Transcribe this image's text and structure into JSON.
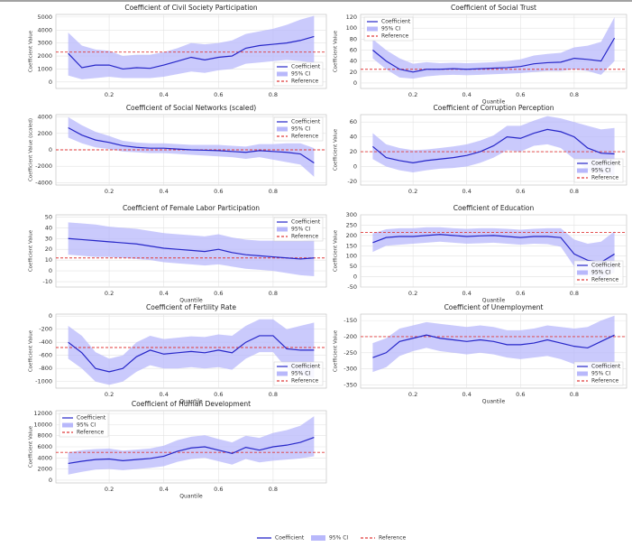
{
  "chart_data": [
    {
      "type": "line",
      "title": "Coefficient of Civil Society Participation",
      "ylabel": "Coefficient Value",
      "x": [
        0.05,
        0.1,
        0.15,
        0.2,
        0.25,
        0.3,
        0.35,
        0.4,
        0.45,
        0.5,
        0.55,
        0.6,
        0.65,
        0.7,
        0.75,
        0.8,
        0.85,
        0.9,
        0.95
      ],
      "series": [
        {
          "name": "Coefficient",
          "color": "#2626c8",
          "values": [
            2200,
            1100,
            1300,
            1300,
            1000,
            1100,
            1050,
            1300,
            1600,
            1900,
            1700,
            1900,
            2000,
            2600,
            2800,
            2900,
            3000,
            3200,
            3500
          ]
        }
      ],
      "ci": {
        "name": "95% CI",
        "color": "#b8b8fb",
        "lower": [
          500,
          200,
          300,
          400,
          300,
          300,
          300,
          400,
          600,
          800,
          700,
          900,
          1000,
          1400,
          1500,
          1600,
          1700,
          1600,
          1500
        ],
        "upper": [
          3800,
          2800,
          2500,
          2400,
          2000,
          2100,
          2100,
          2300,
          2600,
          3000,
          2900,
          3000,
          3200,
          3700,
          3900,
          4100,
          4400,
          4800,
          5100
        ]
      },
      "reference": {
        "name": "Reference",
        "color": "#e03a3a",
        "value": 2300
      },
      "xlim": [
        0.005,
        0.995
      ],
      "xticks": [
        0.2,
        0.4,
        0.6,
        0.8
      ],
      "ylim": [
        -500,
        5200
      ],
      "yticks": [
        0,
        1000,
        2000,
        3000,
        4000,
        5000
      ],
      "grid": true,
      "legend": "lower right"
    },
    {
      "type": "line",
      "title": "Coefficient of Social Trust",
      "xlabel": "Quantile",
      "ylabel": "Coefficient Value",
      "x": [
        0.05,
        0.1,
        0.15,
        0.2,
        0.25,
        0.3,
        0.35,
        0.4,
        0.45,
        0.5,
        0.55,
        0.6,
        0.65,
        0.7,
        0.75,
        0.8,
        0.85,
        0.9,
        0.95
      ],
      "series": [
        {
          "name": "Coefficient",
          "color": "#2626c8",
          "values": [
            60,
            40,
            25,
            20,
            25,
            25,
            26,
            25,
            26,
            27,
            28,
            30,
            35,
            37,
            38,
            45,
            43,
            40,
            82
          ]
        }
      ],
      "ci": {
        "name": "95% CI",
        "color": "#b8b8fb",
        "lower": [
          45,
          25,
          10,
          8,
          12,
          14,
          15,
          14,
          15,
          16,
          17,
          18,
          20,
          22,
          22,
          25,
          22,
          15,
          40
        ],
        "upper": [
          80,
          60,
          45,
          35,
          38,
          36,
          37,
          36,
          37,
          38,
          40,
          43,
          50,
          53,
          55,
          65,
          68,
          75,
          120
        ]
      },
      "reference": {
        "name": "Reference",
        "color": "#e03a3a",
        "value": 25
      },
      "xlim": [
        0.005,
        0.995
      ],
      "xticks": [
        0.2,
        0.4,
        0.6,
        0.8
      ],
      "ylim": [
        -10,
        125
      ],
      "yticks": [
        0,
        20,
        40,
        60,
        80,
        100,
        120
      ],
      "grid": true,
      "legend": "upper left"
    },
    {
      "type": "line",
      "title": "Coefficient of Social Networks (scaled)",
      "ylabel": "Coefficient Value (scaled)",
      "x": [
        0.05,
        0.1,
        0.15,
        0.2,
        0.25,
        0.3,
        0.35,
        0.4,
        0.45,
        0.5,
        0.55,
        0.6,
        0.65,
        0.7,
        0.75,
        0.8,
        0.85,
        0.9,
        0.95
      ],
      "series": [
        {
          "name": "Coefficient",
          "color": "#2626c8",
          "values": [
            2700,
            1800,
            1200,
            900,
            500,
            300,
            200,
            200,
            100,
            0,
            -50,
            -100,
            -200,
            -300,
            -100,
            -200,
            -300,
            -500,
            -1600
          ]
        }
      ],
      "ci": {
        "name": "95% CI",
        "color": "#b8b8fb",
        "lower": [
          1500,
          800,
          300,
          100,
          -200,
          -300,
          -400,
          -400,
          -500,
          -600,
          -700,
          -800,
          -900,
          -1100,
          -900,
          -1200,
          -1500,
          -1800,
          -3300
        ],
        "upper": [
          4000,
          3000,
          2200,
          1700,
          1100,
          900,
          800,
          800,
          700,
          600,
          600,
          600,
          500,
          400,
          700,
          700,
          800,
          800,
          200
        ]
      },
      "reference": {
        "name": "Reference",
        "color": "#e03a3a",
        "value": 0
      },
      "xlim": [
        0.005,
        0.995
      ],
      "xticks": [
        0.2,
        0.4,
        0.6,
        0.8
      ],
      "ylim": [
        -4300,
        4300
      ],
      "yticks": [
        -4000,
        -2000,
        0,
        2000,
        4000
      ],
      "grid": true,
      "legend": "upper right"
    },
    {
      "type": "line",
      "title": "Coefficient of Corruption Perception",
      "ylabel": "Coefficient Value",
      "x": [
        0.05,
        0.1,
        0.15,
        0.2,
        0.25,
        0.3,
        0.35,
        0.4,
        0.45,
        0.5,
        0.55,
        0.6,
        0.65,
        0.7,
        0.75,
        0.8,
        0.85,
        0.9,
        0.95
      ],
      "series": [
        {
          "name": "Coefficient",
          "color": "#2626c8",
          "values": [
            27,
            12,
            8,
            5,
            8,
            10,
            12,
            15,
            20,
            28,
            40,
            38,
            45,
            50,
            47,
            40,
            25,
            18,
            17
          ]
        }
      ],
      "ci": {
        "name": "95% CI",
        "color": "#b8b8fb",
        "lower": [
          10,
          0,
          -5,
          -8,
          -5,
          -3,
          -2,
          0,
          5,
          12,
          22,
          20,
          28,
          30,
          25,
          10,
          -5,
          -10,
          -12
        ],
        "upper": [
          45,
          30,
          25,
          22,
          23,
          25,
          27,
          30,
          35,
          42,
          55,
          55,
          62,
          68,
          65,
          60,
          55,
          50,
          52
        ]
      },
      "reference": {
        "name": "Reference",
        "color": "#e03a3a",
        "value": 20
      },
      "xlim": [
        0.005,
        0.995
      ],
      "xticks": [
        0.2,
        0.4,
        0.6,
        0.8
      ],
      "ylim": [
        -25,
        70
      ],
      "yticks": [
        -20,
        0,
        20,
        40,
        60
      ],
      "grid": true,
      "legend": "lower right"
    },
    {
      "type": "line",
      "title": "Coefficient of Female Labor Participation",
      "xlabel": "Quantile",
      "ylabel": "Coefficient Value",
      "x": [
        0.05,
        0.1,
        0.15,
        0.2,
        0.25,
        0.3,
        0.35,
        0.4,
        0.45,
        0.5,
        0.55,
        0.6,
        0.65,
        0.7,
        0.75,
        0.8,
        0.85,
        0.9,
        0.95
      ],
      "series": [
        {
          "name": "Coefficient",
          "color": "#2626c8",
          "values": [
            30,
            29,
            28,
            27,
            26,
            25,
            23,
            21,
            20,
            19,
            18,
            20,
            17,
            15,
            14,
            13,
            12,
            11,
            12
          ]
        }
      ],
      "ci": {
        "name": "95% CI",
        "color": "#b8b8fb",
        "lower": [
          15,
          14,
          13,
          13,
          12,
          11,
          10,
          8,
          7,
          6,
          5,
          6,
          4,
          2,
          1,
          0,
          -2,
          -4,
          -5
        ],
        "upper": [
          45,
          44,
          43,
          41,
          40,
          39,
          37,
          35,
          34,
          33,
          32,
          34,
          31,
          29,
          28,
          28,
          28,
          28,
          30
        ]
      },
      "reference": {
        "name": "Reference",
        "color": "#e03a3a",
        "value": 12
      },
      "xlim": [
        0.005,
        0.995
      ],
      "xticks": [
        0.2,
        0.4,
        0.6,
        0.8
      ],
      "ylim": [
        -15,
        52
      ],
      "yticks": [
        -10,
        0,
        10,
        20,
        30,
        40,
        50
      ],
      "grid": true,
      "legend": "upper right"
    },
    {
      "type": "line",
      "title": "Coefficient of Education",
      "xlabel": "Quantile",
      "ylabel": "Coefficient Value",
      "x": [
        0.05,
        0.1,
        0.15,
        0.2,
        0.25,
        0.3,
        0.35,
        0.4,
        0.45,
        0.5,
        0.55,
        0.6,
        0.65,
        0.7,
        0.75,
        0.8,
        0.85,
        0.9,
        0.95
      ],
      "series": [
        {
          "name": "Coefficient",
          "color": "#2626c8",
          "values": [
            165,
            190,
            195,
            195,
            200,
            205,
            200,
            195,
            198,
            200,
            195,
            190,
            195,
            195,
            190,
            110,
            80,
            70,
            110
          ]
        }
      ],
      "ci": {
        "name": "95% CI",
        "color": "#b8b8fb",
        "lower": [
          120,
          150,
          155,
          160,
          165,
          170,
          165,
          160,
          162,
          165,
          160,
          155,
          160,
          158,
          145,
          50,
          10,
          -10,
          20
        ],
        "upper": [
          210,
          230,
          235,
          235,
          240,
          240,
          235,
          232,
          235,
          235,
          232,
          228,
          232,
          235,
          235,
          180,
          160,
          170,
          220
        ]
      },
      "reference": {
        "name": "Reference",
        "color": "#e03a3a",
        "value": 215
      },
      "xlim": [
        0.005,
        0.995
      ],
      "xticks": [
        0.2,
        0.4,
        0.6,
        0.8
      ],
      "ylim": [
        -50,
        300
      ],
      "yticks": [
        -50,
        0,
        50,
        100,
        150,
        200,
        250,
        300
      ],
      "grid": true,
      "legend": "lower right"
    },
    {
      "type": "line",
      "title": "Coefficient of Fertility Rate",
      "xlabel": "Quantile",
      "ylabel": "Coefficient Value",
      "x": [
        0.05,
        0.1,
        0.15,
        0.2,
        0.25,
        0.3,
        0.35,
        0.4,
        0.45,
        0.5,
        0.55,
        0.6,
        0.65,
        0.7,
        0.75,
        0.8,
        0.85,
        0.9,
        0.95
      ],
      "series": [
        {
          "name": "Coefficient",
          "color": "#2626c8",
          "values": [
            -400,
            -560,
            -800,
            -850,
            -800,
            -620,
            -520,
            -580,
            -560,
            -540,
            -560,
            -520,
            -560,
            -400,
            -300,
            -300,
            -500,
            -520,
            -520
          ]
        }
      ],
      "ci": {
        "name": "95% CI",
        "color": "#b8b8fb",
        "lower": [
          -650,
          -800,
          -1000,
          -1050,
          -1000,
          -850,
          -750,
          -800,
          -800,
          -780,
          -800,
          -780,
          -820,
          -650,
          -550,
          -550,
          -800,
          -900,
          -950
        ],
        "upper": [
          -150,
          -300,
          -550,
          -650,
          -600,
          -400,
          -300,
          -350,
          -330,
          -310,
          -320,
          -280,
          -300,
          -150,
          -50,
          -50,
          -200,
          -150,
          -100
        ]
      },
      "reference": {
        "name": "Reference",
        "color": "#e03a3a",
        "value": -480
      },
      "xlim": [
        0.005,
        0.995
      ],
      "xticks": [
        0.2,
        0.4,
        0.6,
        0.8
      ],
      "ylim": [
        -1100,
        30
      ],
      "yticks": [
        -1000,
        -800,
        -600,
        -400,
        -200,
        0
      ],
      "grid": true,
      "legend": "lower right"
    },
    {
      "type": "line",
      "title": "Coefficient of Unemployment",
      "xlabel": "Quantile",
      "ylabel": "Coefficient Value",
      "x": [
        0.05,
        0.1,
        0.15,
        0.2,
        0.25,
        0.3,
        0.35,
        0.4,
        0.45,
        0.5,
        0.55,
        0.6,
        0.65,
        0.7,
        0.75,
        0.8,
        0.85,
        0.9,
        0.95
      ],
      "series": [
        {
          "name": "Coefficient",
          "color": "#2626c8",
          "values": [
            -265,
            -250,
            -215,
            -205,
            -195,
            -205,
            -210,
            -215,
            -210,
            -215,
            -225,
            -225,
            -220,
            -210,
            -220,
            -230,
            -235,
            -215,
            -195
          ]
        }
      ],
      "ci": {
        "name": "95% CI",
        "color": "#b8b8fb",
        "lower": [
          -310,
          -295,
          -260,
          -245,
          -235,
          -245,
          -250,
          -255,
          -250,
          -255,
          -265,
          -270,
          -265,
          -260,
          -270,
          -285,
          -300,
          -300,
          -300
        ],
        "upper": [
          -220,
          -205,
          -175,
          -165,
          -155,
          -160,
          -165,
          -170,
          -165,
          -170,
          -180,
          -180,
          -175,
          -165,
          -170,
          -175,
          -170,
          -150,
          -135
        ]
      },
      "reference": {
        "name": "Reference",
        "color": "#e03a3a",
        "value": -200
      },
      "xlim": [
        0.005,
        0.995
      ],
      "xticks": [
        0.2,
        0.4,
        0.6,
        0.8
      ],
      "ylim": [
        -360,
        -130
      ],
      "yticks": [
        -350,
        -300,
        -250,
        -200,
        -150
      ],
      "grid": true,
      "legend": "lower right"
    },
    {
      "type": "line",
      "title": "Coefficient of Human Development",
      "xlabel": "Quantile",
      "ylabel": "Coefficient Value",
      "x": [
        0.05,
        0.1,
        0.15,
        0.2,
        0.25,
        0.3,
        0.35,
        0.4,
        0.45,
        0.5,
        0.55,
        0.6,
        0.65,
        0.7,
        0.75,
        0.8,
        0.85,
        0.9,
        0.95
      ],
      "series": [
        {
          "name": "Coefficient",
          "color": "#2626c8",
          "values": [
            3000,
            3400,
            3700,
            3800,
            3500,
            3700,
            3900,
            4300,
            5200,
            5800,
            6000,
            5400,
            4800,
            5900,
            5400,
            6000,
            6300,
            6800,
            7700
          ]
        }
      ],
      "ci": {
        "name": "95% CI",
        "color": "#b8b8fb",
        "lower": [
          1000,
          1500,
          1900,
          2000,
          1800,
          2000,
          2200,
          2500,
          3300,
          3800,
          4000,
          3400,
          2800,
          3800,
          3200,
          3500,
          3700,
          3900,
          4300
        ],
        "upper": [
          5000,
          5400,
          5600,
          5700,
          5300,
          5500,
          5700,
          6200,
          7200,
          7800,
          8100,
          7400,
          6800,
          8000,
          7600,
          8500,
          9000,
          9800,
          11500
        ]
      },
      "reference": {
        "name": "Reference",
        "color": "#e03a3a",
        "value": 5000
      },
      "xlim": [
        0.005,
        0.995
      ],
      "xticks": [
        0.2,
        0.4,
        0.6,
        0.8
      ],
      "ylim": [
        -500,
        12500
      ],
      "yticks": [
        0,
        2000,
        4000,
        6000,
        8000,
        10000,
        12000
      ],
      "grid": true,
      "legend": "upper left"
    }
  ],
  "figure_legend": [
    "Coefficient",
    "95% CI",
    "Reference"
  ]
}
